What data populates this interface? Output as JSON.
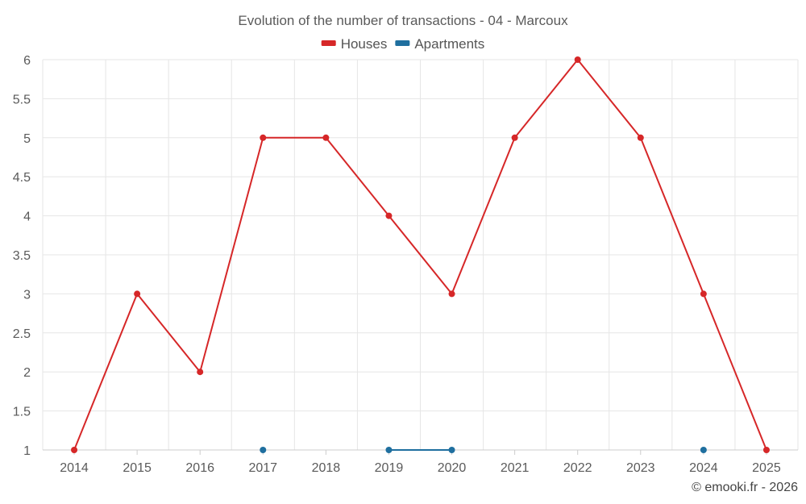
{
  "chart_data": {
    "type": "line",
    "title": "Evolution of the number of transactions - 04 - Marcoux",
    "xlabel": "",
    "ylabel": "",
    "categories": [
      "2014",
      "2015",
      "2016",
      "2017",
      "2018",
      "2019",
      "2020",
      "2021",
      "2022",
      "2023",
      "2024",
      "2025"
    ],
    "ylim": [
      1,
      6
    ],
    "yticks": [
      1,
      1.5,
      2,
      2.5,
      3,
      3.5,
      4,
      4.5,
      5,
      5.5,
      6
    ],
    "grid": true,
    "legend_position": "top-center",
    "series": [
      {
        "name": "Houses",
        "color": "#d62728",
        "values": [
          1,
          3,
          2,
          5,
          5,
          4,
          3,
          5,
          6,
          5,
          3,
          1
        ]
      },
      {
        "name": "Apartments",
        "color": "#1f6f9f",
        "values": [
          null,
          null,
          null,
          1,
          null,
          1,
          1,
          null,
          null,
          null,
          1,
          null
        ]
      }
    ],
    "credit": "© emooki.fr - 2026"
  }
}
